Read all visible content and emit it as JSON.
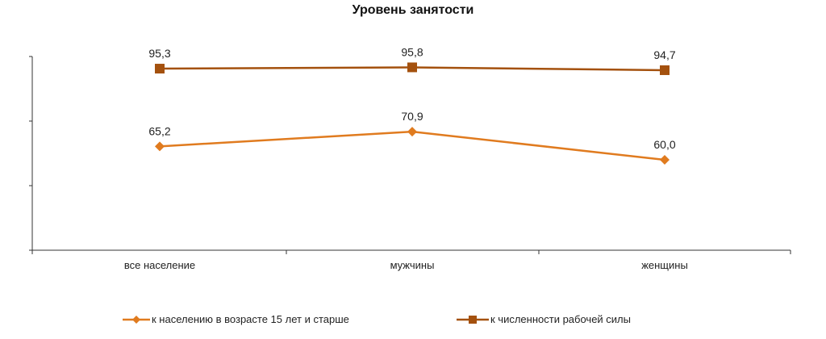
{
  "chart_data": {
    "type": "line",
    "title": "Уровень занятости",
    "categories": [
      "все население",
      "мужчины",
      "женщины"
    ],
    "ylim": [
      0,
      100
    ],
    "y_tick_values": [
      0,
      50,
      75,
      100
    ],
    "grid": false,
    "legend_position": "bottom",
    "series": [
      {
        "name": "к населению в возрасте 15 лет и старше",
        "values": [
          65.2,
          70.9,
          60.0
        ],
        "labels": [
          "65,2",
          "70,9",
          "60,0"
        ],
        "color": "#E07B1F",
        "marker": "diamond"
      },
      {
        "name": "к численности рабочей силы",
        "values": [
          95.3,
          95.8,
          94.7
        ],
        "labels": [
          "95,3",
          "95,8",
          "94,7"
        ],
        "color": "#A4510E",
        "marker": "square"
      }
    ]
  }
}
